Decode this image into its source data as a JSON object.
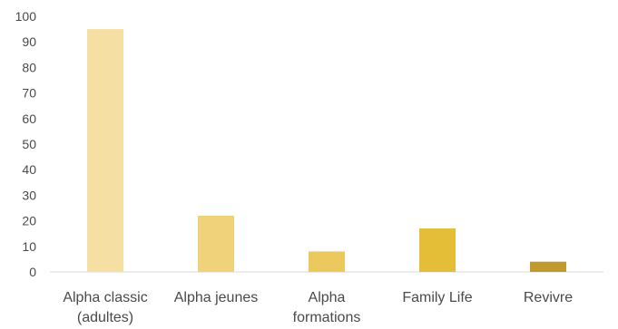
{
  "chart_data": {
    "type": "bar",
    "title": "",
    "categories": [
      [
        "Alpha classic",
        "(adultes)"
      ],
      [
        "Alpha jeunes"
      ],
      [
        "Alpha",
        "formations"
      ],
      [
        "Family Life"
      ],
      [
        "Revivre"
      ]
    ],
    "values": [
      95,
      22,
      8,
      17,
      4
    ],
    "bar_colors": [
      "#f6dfa3",
      "#f0d27a",
      "#ecc95c",
      "#e3be36",
      "#c09a2c"
    ],
    "ylim": [
      0,
      100
    ],
    "yticks": [
      0,
      10,
      20,
      30,
      40,
      50,
      60,
      70,
      80,
      90,
      100
    ],
    "grid": false,
    "legend": "none"
  }
}
